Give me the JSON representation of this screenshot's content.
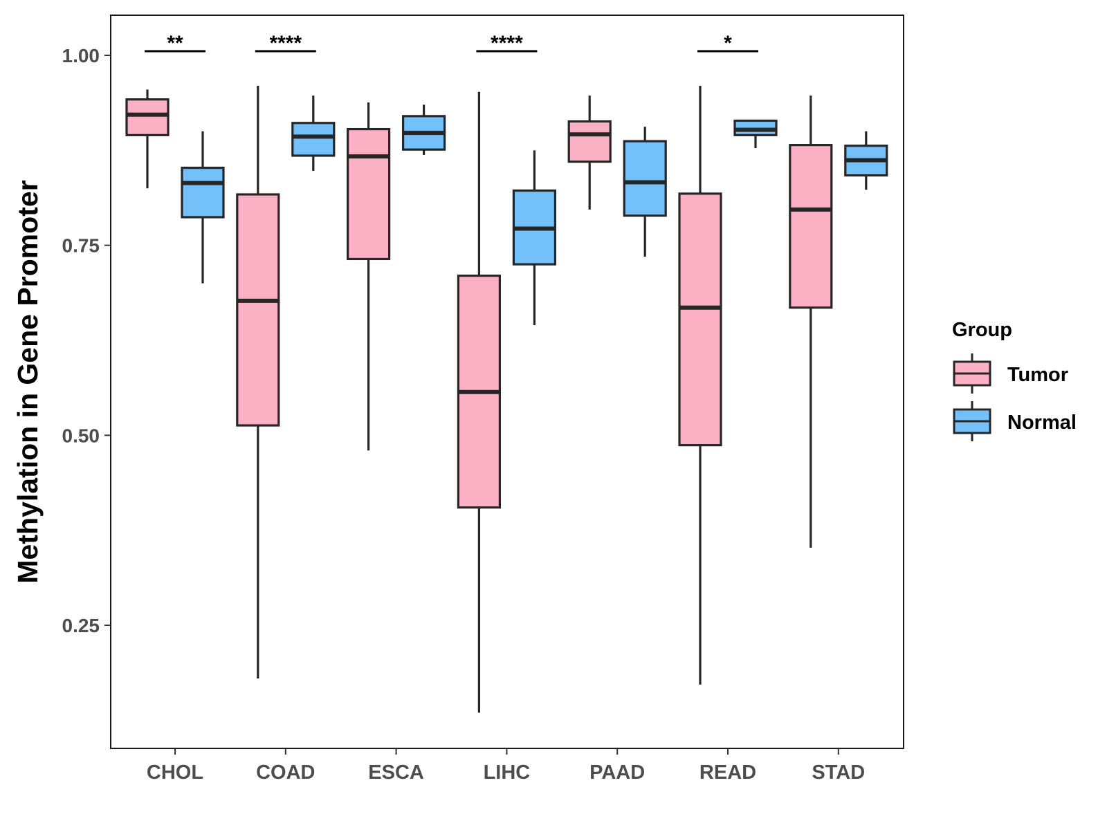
{
  "chart_data": {
    "type": "boxplot",
    "ylabel": "Methylation in Gene Promoter",
    "xlabel": "",
    "ylim": [
      0.1,
      1.05
    ],
    "yticks": [
      0.25,
      0.5,
      0.75,
      1.0
    ],
    "ytick_labels": [
      "0.25",
      "0.50",
      "0.75",
      "1.00"
    ],
    "categories": [
      "CHOL",
      "COAD",
      "ESCA",
      "LIHC",
      "PAAD",
      "READ",
      "STAD"
    ],
    "legend": {
      "title": "Group",
      "position": "right"
    },
    "series": [
      {
        "name": "Tumor",
        "color": "#fbb1c3",
        "boxes": [
          {
            "min": 0.825,
            "q1": 0.895,
            "median": 0.922,
            "q3": 0.942,
            "max": 0.955
          },
          {
            "min": 0.18,
            "q1": 0.513,
            "median": 0.677,
            "q3": 0.817,
            "max": 0.96
          },
          {
            "min": 0.48,
            "q1": 0.732,
            "median": 0.867,
            "q3": 0.903,
            "max": 0.938
          },
          {
            "min": 0.135,
            "q1": 0.405,
            "median": 0.557,
            "q3": 0.71,
            "max": 0.952
          },
          {
            "min": 0.797,
            "q1": 0.86,
            "median": 0.896,
            "q3": 0.913,
            "max": 0.947
          },
          {
            "min": 0.172,
            "q1": 0.487,
            "median": 0.668,
            "q3": 0.818,
            "max": 0.96
          },
          {
            "min": 0.352,
            "q1": 0.668,
            "median": 0.797,
            "q3": 0.882,
            "max": 0.947
          }
        ]
      },
      {
        "name": "Normal",
        "color": "#74c0f9",
        "boxes": [
          {
            "min": 0.7,
            "q1": 0.787,
            "median": 0.832,
            "q3": 0.852,
            "max": 0.9
          },
          {
            "min": 0.848,
            "q1": 0.868,
            "median": 0.893,
            "q3": 0.911,
            "max": 0.947
          },
          {
            "min": 0.869,
            "q1": 0.876,
            "median": 0.898,
            "q3": 0.92,
            "max": 0.935
          },
          {
            "min": 0.645,
            "q1": 0.725,
            "median": 0.772,
            "q3": 0.822,
            "max": 0.875
          },
          {
            "min": 0.735,
            "q1": 0.789,
            "median": 0.833,
            "q3": 0.887,
            "max": 0.906
          },
          {
            "min": 0.878,
            "q1": 0.895,
            "median": 0.902,
            "q3": 0.914,
            "max": 0.914
          },
          {
            "min": 0.823,
            "q1": 0.842,
            "median": 0.862,
            "q3": 0.881,
            "max": 0.9
          }
        ]
      }
    ],
    "significance": [
      {
        "category": "CHOL",
        "label": "**"
      },
      {
        "category": "COAD",
        "label": "****"
      },
      {
        "category": "LIHC",
        "label": "****"
      },
      {
        "category": "READ",
        "label": "*"
      }
    ]
  }
}
